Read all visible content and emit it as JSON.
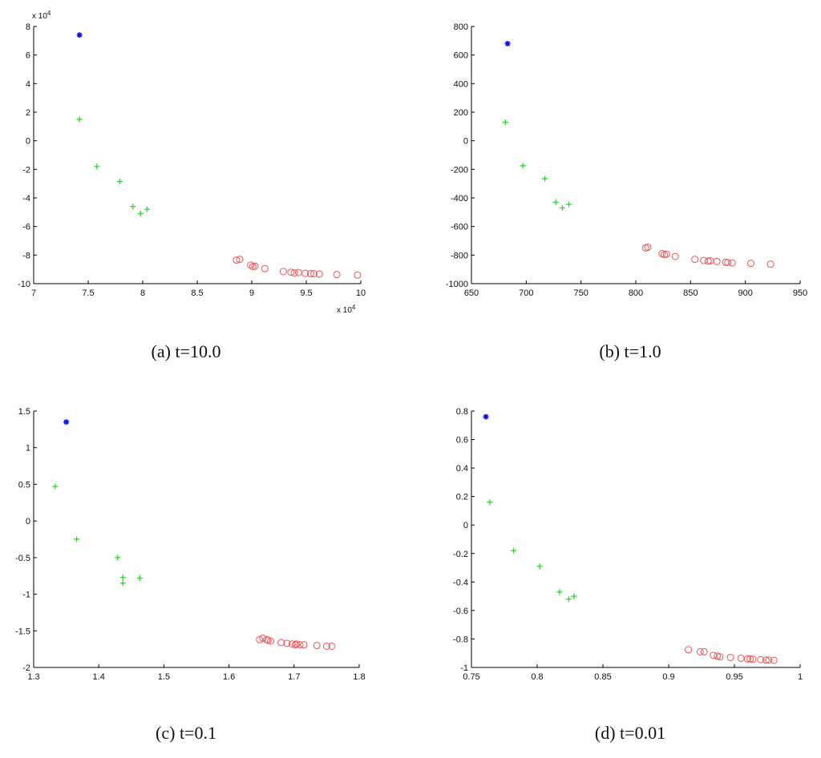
{
  "colors": {
    "star": "#1010e0",
    "plus": "#22dd22",
    "circle": "#ee5555",
    "axis": "#000000"
  },
  "chart_data": [
    {
      "type": "scatter",
      "caption": "(a) t=10.0",
      "x_multiplier": "x 10",
      "x_multiplier_exp": "4",
      "y_multiplier": "x 10",
      "y_multiplier_exp": "4",
      "xlim": [
        7,
        10
      ],
      "ylim": [
        -10,
        8
      ],
      "xticks": [
        7,
        7.5,
        8,
        8.5,
        9,
        9.5,
        10
      ],
      "xtick_labels": [
        "7",
        "7.5",
        "8",
        "8.5",
        "9",
        "9.5",
        "10"
      ],
      "yticks": [
        -10,
        -8,
        -6,
        -4,
        -2,
        0,
        2,
        4,
        6,
        8
      ],
      "ytick_labels": [
        "-10",
        "-8",
        "-6",
        "-4",
        "-2",
        "0",
        "2",
        "4",
        "6",
        "8"
      ],
      "series": [
        {
          "marker": "star",
          "points": [
            [
              7.42,
              7.4
            ]
          ]
        },
        {
          "marker": "plus",
          "points": [
            [
              7.42,
              1.5
            ],
            [
              7.58,
              -1.8
            ],
            [
              7.79,
              -2.85
            ],
            [
              7.91,
              -4.6
            ],
            [
              7.98,
              -5.1
            ],
            [
              8.04,
              -4.8
            ]
          ]
        },
        {
          "marker": "circle",
          "points": [
            [
              8.86,
              -8.35
            ],
            [
              8.89,
              -8.3
            ],
            [
              8.99,
              -8.7
            ],
            [
              9.01,
              -8.8
            ],
            [
              9.03,
              -8.78
            ],
            [
              9.12,
              -8.95
            ],
            [
              9.29,
              -9.15
            ],
            [
              9.36,
              -9.2
            ],
            [
              9.39,
              -9.25
            ],
            [
              9.43,
              -9.22
            ],
            [
              9.49,
              -9.28
            ],
            [
              9.54,
              -9.3
            ],
            [
              9.57,
              -9.3
            ],
            [
              9.62,
              -9.33
            ],
            [
              9.78,
              -9.36
            ],
            [
              9.97,
              -9.4
            ]
          ]
        }
      ]
    },
    {
      "type": "scatter",
      "caption": "(b) t=1.0",
      "xlim": [
        650,
        950
      ],
      "ylim": [
        -1000,
        800
      ],
      "xticks": [
        650,
        700,
        750,
        800,
        850,
        900,
        950
      ],
      "xtick_labels": [
        "650",
        "700",
        "750",
        "800",
        "850",
        "900",
        "950"
      ],
      "yticks": [
        -1000,
        -800,
        -600,
        -400,
        -200,
        0,
        200,
        400,
        600,
        800
      ],
      "ytick_labels": [
        "-1000",
        "-800",
        "-600",
        "-400",
        "-200",
        "0",
        "200",
        "400",
        "600",
        "800"
      ],
      "series": [
        {
          "marker": "star",
          "points": [
            [
              683,
              680
            ]
          ]
        },
        {
          "marker": "plus",
          "points": [
            [
              681,
              130
            ],
            [
              697,
              -175
            ],
            [
              717,
              -265
            ],
            [
              727,
              -430
            ],
            [
              733,
              -470
            ],
            [
              739,
              -445
            ]
          ]
        },
        {
          "marker": "circle",
          "points": [
            [
              809,
              -750
            ],
            [
              811,
              -745
            ],
            [
              824,
              -790
            ],
            [
              826,
              -797
            ],
            [
              828,
              -793
            ],
            [
              836,
              -810
            ],
            [
              854,
              -830
            ],
            [
              862,
              -838
            ],
            [
              866,
              -842
            ],
            [
              868,
              -840
            ],
            [
              874,
              -845
            ],
            [
              882,
              -850
            ],
            [
              884,
              -852
            ],
            [
              888,
              -855
            ],
            [
              905,
              -858
            ],
            [
              923,
              -863
            ]
          ]
        }
      ]
    },
    {
      "type": "scatter",
      "caption": "(c) t=0.1",
      "xlim": [
        1.3,
        1.8
      ],
      "ylim": [
        -2,
        1.5
      ],
      "xticks": [
        1.3,
        1.4,
        1.5,
        1.6,
        1.7,
        1.8
      ],
      "xtick_labels": [
        "1.3",
        "1.4",
        "1.5",
        "1.6",
        "1.7",
        "1.8"
      ],
      "yticks": [
        -2,
        -1.5,
        -1,
        -0.5,
        0,
        0.5,
        1,
        1.5
      ],
      "ytick_labels": [
        "-2",
        "-1.5",
        "-1",
        "-0.5",
        "0",
        "0.5",
        "1",
        "1.5"
      ],
      "series": [
        {
          "marker": "star",
          "points": [
            [
              1.35,
              1.35
            ]
          ]
        },
        {
          "marker": "plus",
          "points": [
            [
              1.333,
              0.47
            ],
            [
              1.366,
              -0.25
            ],
            [
              1.429,
              -0.5
            ],
            [
              1.437,
              -0.77
            ],
            [
              1.437,
              -0.85
            ],
            [
              1.463,
              -0.78
            ]
          ]
        },
        {
          "marker": "circle",
          "points": [
            [
              1.647,
              -1.62
            ],
            [
              1.652,
              -1.6
            ],
            [
              1.658,
              -1.62
            ],
            [
              1.66,
              -1.63
            ],
            [
              1.664,
              -1.64
            ],
            [
              1.68,
              -1.66
            ],
            [
              1.689,
              -1.67
            ],
            [
              1.697,
              -1.68
            ],
            [
              1.702,
              -1.69
            ],
            [
              1.704,
              -1.68
            ],
            [
              1.709,
              -1.69
            ],
            [
              1.715,
              -1.69
            ],
            [
              1.735,
              -1.7
            ],
            [
              1.75,
              -1.71
            ],
            [
              1.758,
              -1.71
            ]
          ]
        }
      ]
    },
    {
      "type": "scatter",
      "caption": "(d) t=0.01",
      "xlim": [
        0.75,
        1
      ],
      "ylim": [
        -1,
        0.8
      ],
      "xticks": [
        0.75,
        0.8,
        0.85,
        0.9,
        0.95,
        1
      ],
      "xtick_labels": [
        "0.75",
        "0.8",
        "0.85",
        "0.9",
        "0.95",
        "1"
      ],
      "yticks": [
        -1,
        -0.8,
        -0.6,
        -0.4,
        -0.2,
        0,
        0.2,
        0.4,
        0.6,
        0.8
      ],
      "ytick_labels": [
        "-1",
        "-0.8",
        "-0.6",
        "-0.4",
        "-0.2",
        "0",
        "0.2",
        "0.4",
        "0.6",
        "0.8"
      ],
      "series": [
        {
          "marker": "star",
          "points": [
            [
              0.761,
              0.76
            ]
          ]
        },
        {
          "marker": "plus",
          "points": [
            [
              0.764,
              0.16
            ],
            [
              0.782,
              -0.18
            ],
            [
              0.802,
              -0.29
            ],
            [
              0.817,
              -0.47
            ],
            [
              0.824,
              -0.52
            ],
            [
              0.828,
              -0.5
            ]
          ]
        },
        {
          "marker": "circle",
          "points": [
            [
              0.915,
              -0.875
            ],
            [
              0.924,
              -0.89
            ],
            [
              0.927,
              -0.89
            ],
            [
              0.934,
              -0.915
            ],
            [
              0.937,
              -0.92
            ],
            [
              0.939,
              -0.925
            ],
            [
              0.947,
              -0.93
            ],
            [
              0.955,
              -0.935
            ],
            [
              0.96,
              -0.94
            ],
            [
              0.962,
              -0.94
            ],
            [
              0.964,
              -0.942
            ],
            [
              0.97,
              -0.945
            ],
            [
              0.974,
              -0.948
            ],
            [
              0.976,
              -0.948
            ],
            [
              0.98,
              -0.95
            ]
          ]
        }
      ]
    }
  ]
}
